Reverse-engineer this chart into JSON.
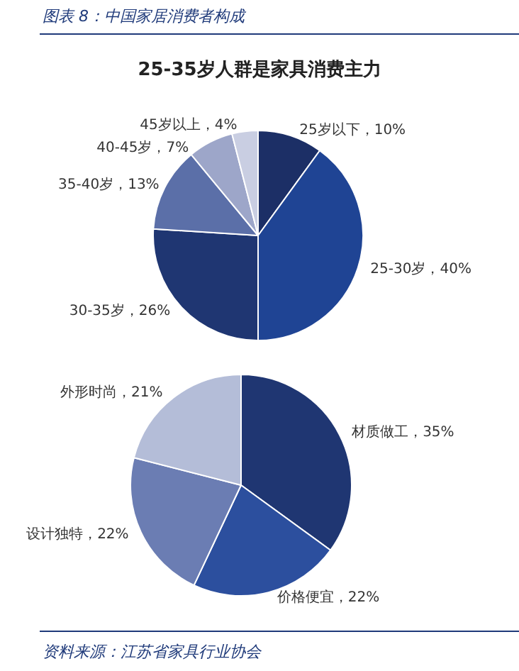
{
  "chart_data": [
    {
      "type": "pie",
      "title": "25-35岁人群是家具消费主力",
      "annotations": [
        "图表 8：中国家居消费者构成"
      ],
      "categories": [
        "25岁以下",
        "25-30岁",
        "30-35岁",
        "35-40岁",
        "40-45岁",
        "45岁以上"
      ],
      "values": [
        10,
        40,
        26,
        13,
        7,
        4
      ],
      "value_labels": [
        "10%",
        "40%",
        "26%",
        "13%",
        "7%",
        "4%"
      ],
      "colors": [
        "#1c2f66",
        "#1f4494",
        "#1f3672",
        "#5b6fa8",
        "#9da6c9",
        "#c9cee2"
      ]
    },
    {
      "type": "pie",
      "annotations": [
        "资料来源：江苏省家具行业协会"
      ],
      "categories": [
        "材质做工",
        "价格便宜",
        "设计独特",
        "外形时尚"
      ],
      "values": [
        35,
        22,
        22,
        21
      ],
      "value_labels": [
        "35%",
        "22%",
        "22%",
        "21%"
      ],
      "colors": [
        "#1f3672",
        "#2c4f9e",
        "#6b7db3",
        "#b4bdd8"
      ]
    }
  ]
}
